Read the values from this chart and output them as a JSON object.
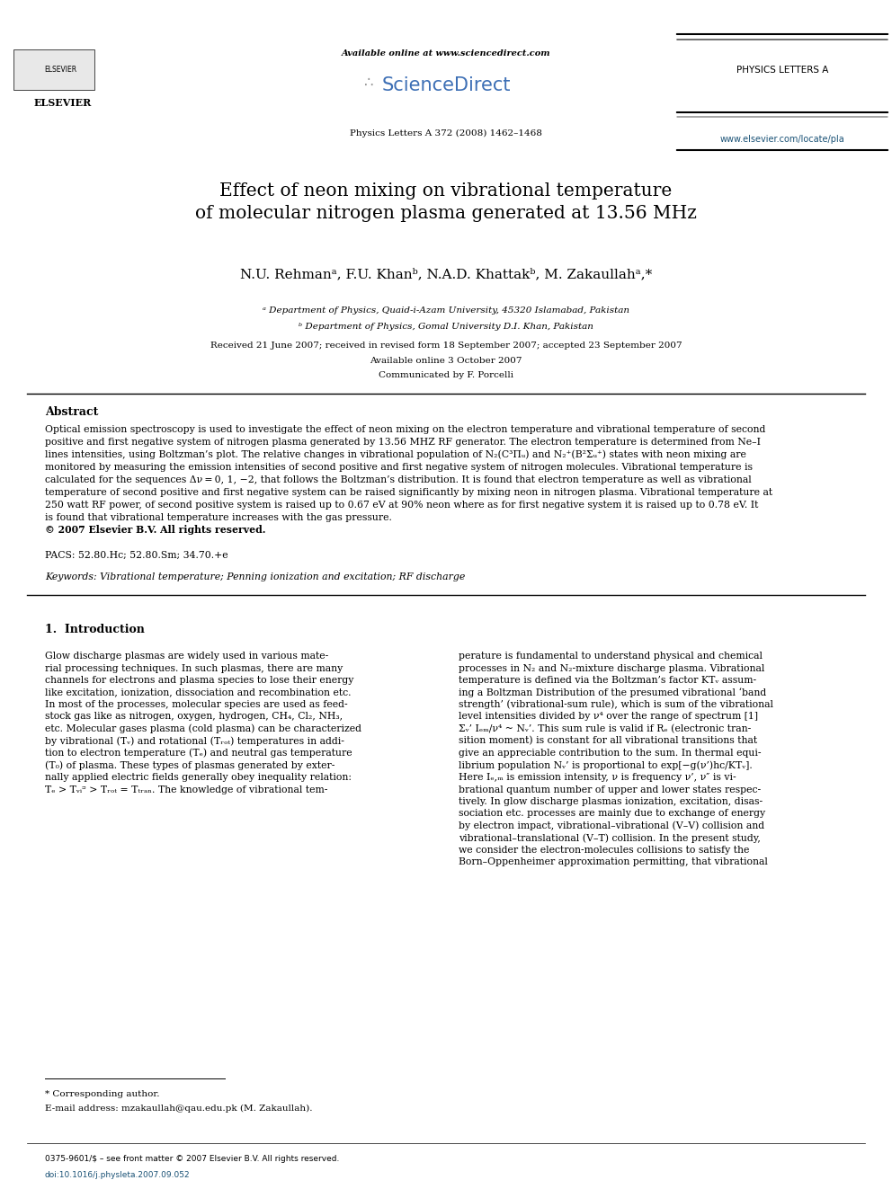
{
  "page_width": 9.92,
  "page_height": 13.23,
  "bg_color": "#ffffff",
  "header": {
    "available_online_text": "Available online at www.sciencedirect.com",
    "sciencedirect_text": "ScienceDirect",
    "journal_name": "PHYSICS LETTERS A",
    "journal_info": "Physics Letters A 372 (2008) 1462–1468",
    "journal_url": "www.elsevier.com/locate/pla"
  },
  "title": "Effect of neon mixing on vibrational temperature\nof molecular nitrogen plasma generated at 13.56 MHz",
  "authors": "N.U. Rehmanᵃ, F.U. Khanᵇ, N.A.D. Khattakᵇ, M. Zakaullahᵃ,*",
  "affiliation_a": "ᵃ Department of Physics, Quaid-i-Azam University, 45320 Islamabad, Pakistan",
  "affiliation_b": "ᵇ Department of Physics, Gomal University D.I. Khan, Pakistan",
  "received_text": "Received 21 June 2007; received in revised form 18 September 2007; accepted 23 September 2007",
  "available_online": "Available online 3 October 2007",
  "communicated": "Communicated by F. Porcelli",
  "abstract_title": "Abstract",
  "abstract_text": "Optical emission spectroscopy is used to investigate the effect of neon mixing on the electron temperature and vibrational temperature of second positive and first negative system of nitrogen plasma generated by 13.56 MHZ RF generator. The electron temperature is determined from Ne–I lines intensities, using Boltzman’s plot. The relative changes in vibrational population of N₂(C³Πᵤ) and N₂⁺(B²Σᵤ⁺) states with neon mixing are monitored by measuring the emission intensities of second positive and first negative system of nitrogen molecules. Vibrational temperature is calculated for the sequences Δν = 0, 1, −2, that follows the Boltzman’s distribution. It is found that electron temperature as well as vibrational temperature of second positive and first negative system can be raised significantly by mixing neon in nitrogen plasma. Vibrational temperature at 250 watt RF power, of second positive system is raised up to 0.67 eV at 90% neon where as for first negative system it is raised up to 0.78 eV. It is found that vibrational temperature increases with the gas pressure.\n© 2007 Elsevier B.V. All rights reserved.",
  "pacs_text": "PACS: 52.80.Hc; 52.80.Sm; 34.70.+e",
  "keywords_text": "Keywords: Vibrational temperature; Penning ionization and excitation; RF discharge",
  "section1_title": "1.  Introduction",
  "intro_left": "Glow discharge plasmas are widely used in various material processing techniques. In such plasmas, there are many channels for electrons and plasma species to lose their energy like excitation, ionization, dissociation and recombination etc. In most of the processes, molecular species are used as feedstock gas like as nitrogen, oxygen, hydrogen, CH₄, Cl₂, NH₃, etc. Molecular gases plasma (cold plasma) can be characterized by vibrational (Tᵥ) and rotational (Tᵣₒₜ) temperatures in addition to electron temperature (Tₑ) and neutral gas temperature (T₀) of plasma. These types of plasmas generated by externally applied electric fields generally obey inequality relation: Tₑ > Tᵥᵢᵙ > Tᵣₒₜ = Tₜᵣₐₙ. The knowledge of vibrational tem-",
  "intro_right": "perature is fundamental to understand physical and chemical processes in N₂ and N₂-mixture discharge plasma. Vibrational temperature is defined via the Boltzman’s factor KTᵥ assuming a Boltzman Distribution of the presumed vibrational ‘band strength’ (vibrational-sum rule), which is sum of the vibrational level intensities divided by ν⁴ over the range of spectrum [1] Σᵥ’ Iₑₘ/ν⁴ ~ Nᵥ’. This sum rule is valid if Rₑ (electronic transition moment) is constant for all vibrational transitions that give an appreciable contribution to the sum. In thermal equilibrium population Nᵥ’ is proportional to exp[−g(ν’)hc/KTᵥ]. Here Iₑ,ₘ is emission intensity, ν is frequency ν’, ν″ is vibrational quantum number of upper and lower states respectively. In glow discharge plasmas ionization, excitation, dissociation etc. processes are mainly due to exchange of energy by electron impact, vibrational–vibrational (V–V) collision and vibrational–translational (V–T) collision. In the present study, we consider the electron-molecules collisions to satisfy the Born–Oppenheimer approximation permitting, that vibrational",
  "footnote_star": "* Corresponding author.",
  "footnote_email": "E-mail address: mzakaullah@qau.edu.pk (M. Zakaullah).",
  "footer_left": "0375-9601/$ – see front matter © 2007 Elsevier B.V. All rights reserved.",
  "footer_doi": "doi:10.1016/j.physleta.2007.09.052"
}
